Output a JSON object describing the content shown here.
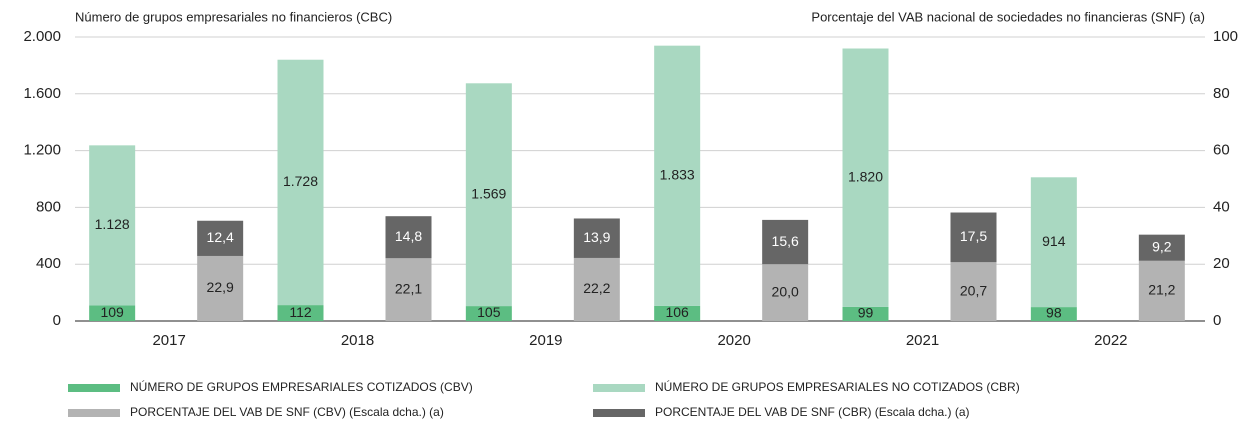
{
  "chart_data": {
    "type": "bar",
    "stacked": true,
    "grid": true,
    "ylabel": "Número de grupos empresariales no financieros (CBC)",
    "y2label": "Porcentaje del VAB nacional de sociedades no financieras (SNF) (a)",
    "categories": [
      "2017",
      "2018",
      "2019",
      "2020",
      "2021",
      "2022"
    ],
    "ylim": [
      0,
      2000
    ],
    "yticks": [
      0,
      400,
      800,
      {
        "value": 1200,
        "label": "1.200"
      },
      {
        "value": 1600,
        "label": "1.600"
      },
      {
        "value": 2000,
        "label": "2.000"
      }
    ],
    "y2lim": [
      0,
      100
    ],
    "y2ticks": [
      0,
      20,
      40,
      60,
      80,
      100
    ],
    "series": [
      {
        "name": "NÚMERO DE GRUPOS EMPRESARIALES COTIZADOS (CBV)",
        "color": "#5cbd82",
        "axis": "y",
        "values": [
          109,
          112,
          105,
          106,
          99,
          98
        ],
        "value_labels": [
          "109",
          "112",
          "105",
          "106",
          "99",
          "98"
        ]
      },
      {
        "name": "NÚMERO DE GRUPOS EMPRESARIALES NO COTIZADOS (CBR)",
        "color": "#a9d8c1",
        "axis": "y",
        "values": [
          1128,
          1728,
          1569,
          1833,
          1820,
          914
        ],
        "value_labels": [
          "1.128",
          "1.728",
          "1.569",
          "1.833",
          "1.820",
          "914"
        ]
      },
      {
        "name": "PORCENTAJE DEL VAB DE SNF (CBV) (Escala dcha.) (a)",
        "color": "#b3b3b3",
        "axis": "y2",
        "values": [
          22.9,
          22.1,
          22.2,
          20.0,
          20.7,
          21.2
        ],
        "value_labels": [
          "22,9",
          "22,1",
          "22,2",
          "20,0",
          "20,7",
          "21,2"
        ]
      },
      {
        "name": "PORCENTAJE DEL VAB DE SNF (CBR) (Escala dcha.) (a)",
        "color": "#666666",
        "axis": "y2",
        "values": [
          12.4,
          14.8,
          13.9,
          15.6,
          17.5,
          9.2
        ],
        "value_labels": [
          "12,4",
          "14,8",
          "13,9",
          "15,6",
          "17,5",
          "9,2"
        ]
      }
    ]
  }
}
